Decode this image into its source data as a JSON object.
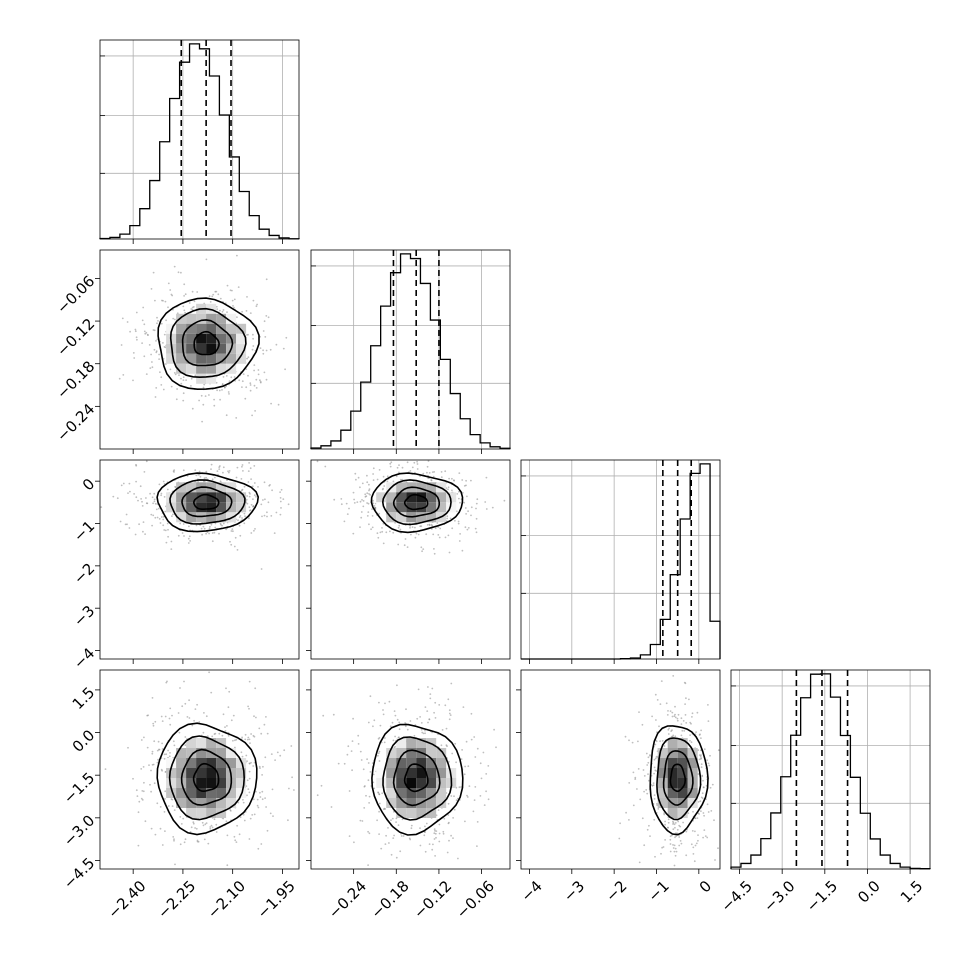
{
  "chart_data": {
    "type": "corner",
    "grid": true,
    "parameters": [
      {
        "range": [
          -2.5,
          -1.9
        ],
        "ticks": [
          "−2.40",
          "−2.25",
          "−2.10",
          "−1.95"
        ],
        "tick_values": [
          -2.4,
          -2.25,
          -2.1,
          -1.95
        ],
        "mean": -2.18,
        "sd": 0.075,
        "quantiles": [
          -2.255,
          -2.18,
          -2.105
        ]
      },
      {
        "range": [
          -0.3,
          -0.02
        ],
        "ticks": [
          "−0.24",
          "−0.18",
          "−0.12",
          "−0.06"
        ],
        "tick_values": [
          -0.24,
          -0.18,
          -0.12,
          -0.06
        ],
        "mean": -0.152,
        "sd": 0.032,
        "quantiles": [
          -0.184,
          -0.152,
          -0.12
        ]
      },
      {
        "range": [
          -4.2,
          0.5
        ],
        "ticks": [
          "−4",
          "−3",
          "−2",
          "−1",
          "0"
        ],
        "tick_values": [
          -4,
          -3,
          -2,
          -1,
          0
        ],
        "mean": -0.5,
        "sd": 0.34,
        "quantiles": [
          -0.85,
          -0.5,
          -0.18
        ]
      },
      {
        "range": [
          -4.8,
          2.2
        ],
        "ticks": [
          "−4.5",
          "−3.0",
          "−1.5",
          "0.0",
          "1.5"
        ],
        "tick_values": [
          -4.5,
          -3.0,
          -1.5,
          0.0,
          1.5
        ],
        "mean": -1.6,
        "sd": 0.95,
        "quantiles": [
          -2.5,
          -1.6,
          -0.7
        ]
      }
    ],
    "histograms": [
      {
        "param": 0,
        "bins": 20,
        "counts": [
          2,
          7,
          22,
          60,
          136,
          262,
          436,
          630,
          793,
          875,
          853,
          731,
          556,
          368,
          213,
          105,
          44,
          16,
          5,
          1
        ]
      },
      {
        "param": 1,
        "bins": 20,
        "counts": [
          4,
          13,
          33,
          77,
          155,
          274,
          423,
          585,
          722,
          799,
          780,
          678,
          528,
          367,
          227,
          124,
          59,
          25,
          9,
          3
        ]
      },
      {
        "param": 2,
        "bins": 20,
        "counts": [
          0,
          0,
          0,
          0,
          0,
          0,
          0,
          0,
          0,
          0,
          1,
          3,
          13,
          46,
          126,
          268,
          445,
          590,
          620,
          120
        ]
      },
      {
        "param": 3,
        "bins": 20,
        "counts": [
          6,
          18,
          45,
          98,
          181,
          298,
          432,
          553,
          629,
          630,
          555,
          431,
          296,
          180,
          97,
          45,
          18,
          6,
          2,
          1
        ]
      }
    ],
    "pairs": [
      {
        "x_param": 0,
        "y_param": 1
      },
      {
        "x_param": 0,
        "y_param": 2
      },
      {
        "x_param": 1,
        "y_param": 2
      },
      {
        "x_param": 0,
        "y_param": 3
      },
      {
        "x_param": 1,
        "y_param": 3
      },
      {
        "x_param": 2,
        "y_param": 3
      }
    ]
  }
}
